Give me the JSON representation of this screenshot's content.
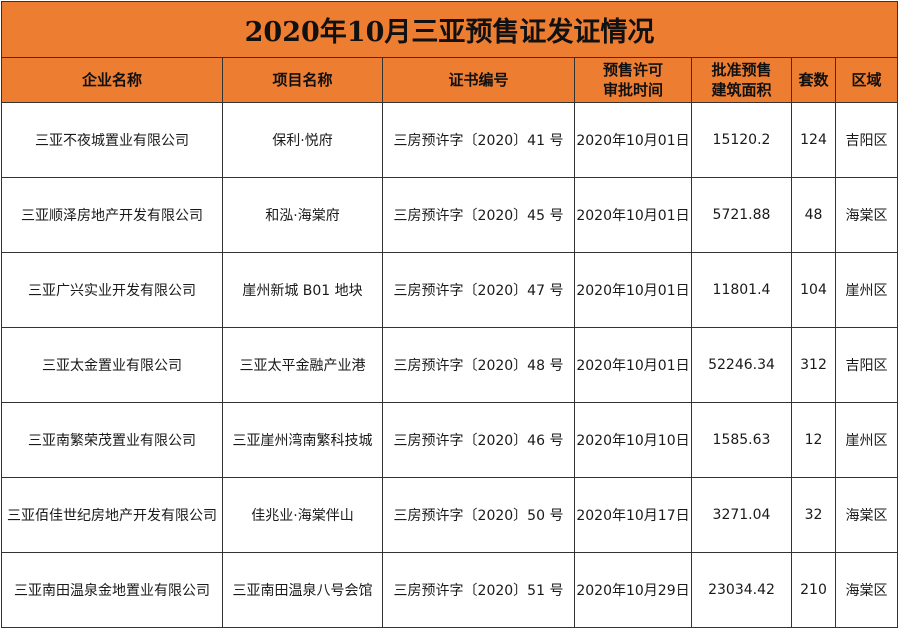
{
  "title": "2020年10月三亚预售证发证情况",
  "headers": {
    "company": "企业名称",
    "project": "项目名称",
    "cert_no": "证书编号",
    "approval_time_l1": "预售许可",
    "approval_time_l2": "审批时间",
    "area_l1": "批准预售",
    "area_l2": "建筑面积",
    "units": "套数",
    "district": "区域"
  },
  "rows": [
    {
      "company": "三亚不夜城置业有限公司",
      "project": "保利·悦府",
      "cert_no": "三房预许字〔2020〕41 号",
      "date": "2020年10月01日",
      "area": "15120.2",
      "units": "124",
      "district": "吉阳区"
    },
    {
      "company": "三亚顺泽房地产开发有限公司",
      "project": "和泓·海棠府",
      "cert_no": "三房预许字〔2020〕45 号",
      "date": "2020年10月01日",
      "area": "5721.88",
      "units": "48",
      "district": "海棠区"
    },
    {
      "company": "三亚广兴实业开发有限公司",
      "project": "崖州新城 B01 地块",
      "cert_no": "三房预许字〔2020〕47 号",
      "date": "2020年10月01日",
      "area": "11801.4",
      "units": "104",
      "district": "崖州区"
    },
    {
      "company": "三亚太金置业有限公司",
      "project": "三亚太平金融产业港",
      "cert_no": "三房预许字〔2020〕48 号",
      "date": "2020年10月01日",
      "area": "52246.34",
      "units": "312",
      "district": "吉阳区"
    },
    {
      "company": "三亚南繁荣茂置业有限公司",
      "project": "三亚崖州湾南繁科技城",
      "cert_no": "三房预许字〔2020〕46 号",
      "date": "2020年10月10日",
      "area": "1585.63",
      "units": "12",
      "district": "崖州区"
    },
    {
      "company": "三亚佰佳世纪房地产开发有限公司",
      "project": "佳兆业·海棠伴山",
      "cert_no": "三房预许字〔2020〕50 号",
      "date": "2020年10月17日",
      "area": "3271.04",
      "units": "32",
      "district": "海棠区"
    },
    {
      "company": "三亚南田温泉金地置业有限公司",
      "project": "三亚南田温泉八号会馆",
      "cert_no": "三房预许字〔2020〕51 号",
      "date": "2020年10月29日",
      "area": "23034.42",
      "units": "210",
      "district": "海棠区"
    }
  ],
  "colors": {
    "header_fill": "#ed7d31",
    "border": "#333333"
  }
}
